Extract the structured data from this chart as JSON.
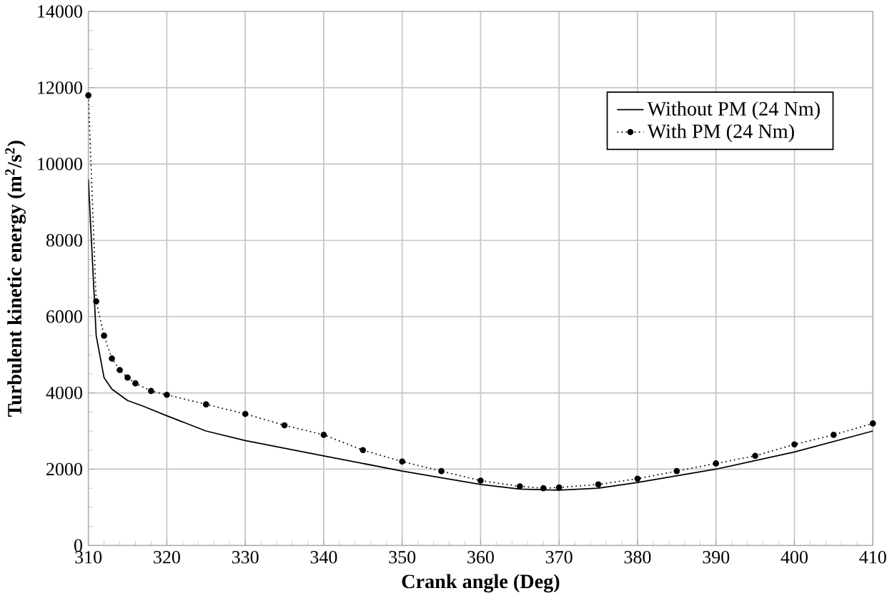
{
  "chart_data": {
    "type": "line",
    "xlabel": "Crank angle (Deg)",
    "ylabel": "Turbulent kinetic energy (m$^{2}$/s$^{2}$)",
    "xlim": [
      310,
      410
    ],
    "xticks": [
      310,
      320,
      330,
      340,
      350,
      360,
      370,
      380,
      390,
      400,
      410
    ],
    "ylim": [
      0,
      14000
    ],
    "yticks": [
      0,
      2000,
      4000,
      6000,
      8000,
      10000,
      12000,
      14000
    ],
    "grid": true,
    "legend": "top right",
    "series": [
      {
        "name": "Without PM (24 Nm)",
        "color": "#000000",
        "line_style": "solid",
        "marker": "none",
        "x": [
          310,
          311,
          312,
          313,
          315,
          317,
          320,
          325,
          330,
          340,
          350,
          360,
          365,
          370,
          375,
          380,
          390,
          400,
          410
        ],
        "values": [
          9600,
          5500,
          4400,
          4100,
          3800,
          3650,
          3400,
          3000,
          2750,
          2350,
          1950,
          1600,
          1480,
          1450,
          1500,
          1650,
          2000,
          2450,
          3000
        ]
      },
      {
        "name": "With PM (24 Nm)",
        "color": "#000000",
        "line_style": "dotted",
        "marker": "circle",
        "x": [
          310,
          311,
          312,
          313,
          314,
          315,
          316,
          318,
          320,
          325,
          330,
          335,
          340,
          345,
          350,
          355,
          360,
          365,
          368,
          370,
          375,
          380,
          385,
          390,
          395,
          400,
          405,
          410
        ],
        "values": [
          11800,
          6400,
          5500,
          4900,
          4600,
          4400,
          4250,
          4050,
          3950,
          3700,
          3450,
          3150,
          2900,
          2500,
          2200,
          1950,
          1700,
          1550,
          1500,
          1520,
          1600,
          1750,
          1950,
          2150,
          2350,
          2650,
          2900,
          3200
        ]
      }
    ]
  }
}
